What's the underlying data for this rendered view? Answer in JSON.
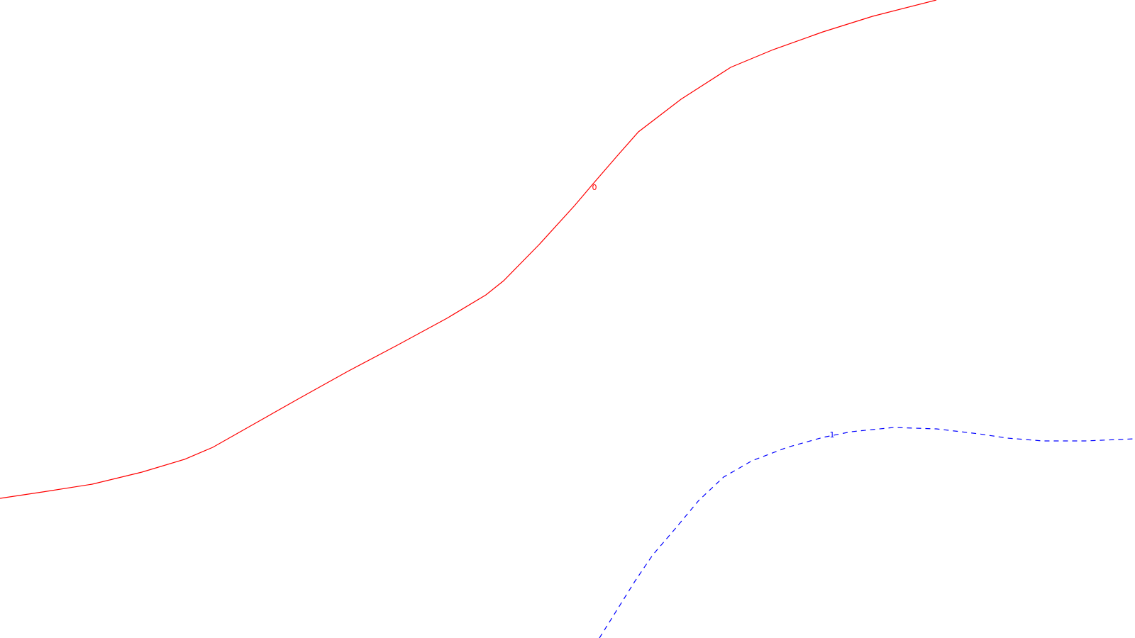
{
  "contours": [
    {
      "label": "0",
      "color": "#ff0000",
      "style": "solid"
    },
    {
      "label": "1",
      "color": "#0000ff",
      "style": "dashed"
    }
  ]
}
